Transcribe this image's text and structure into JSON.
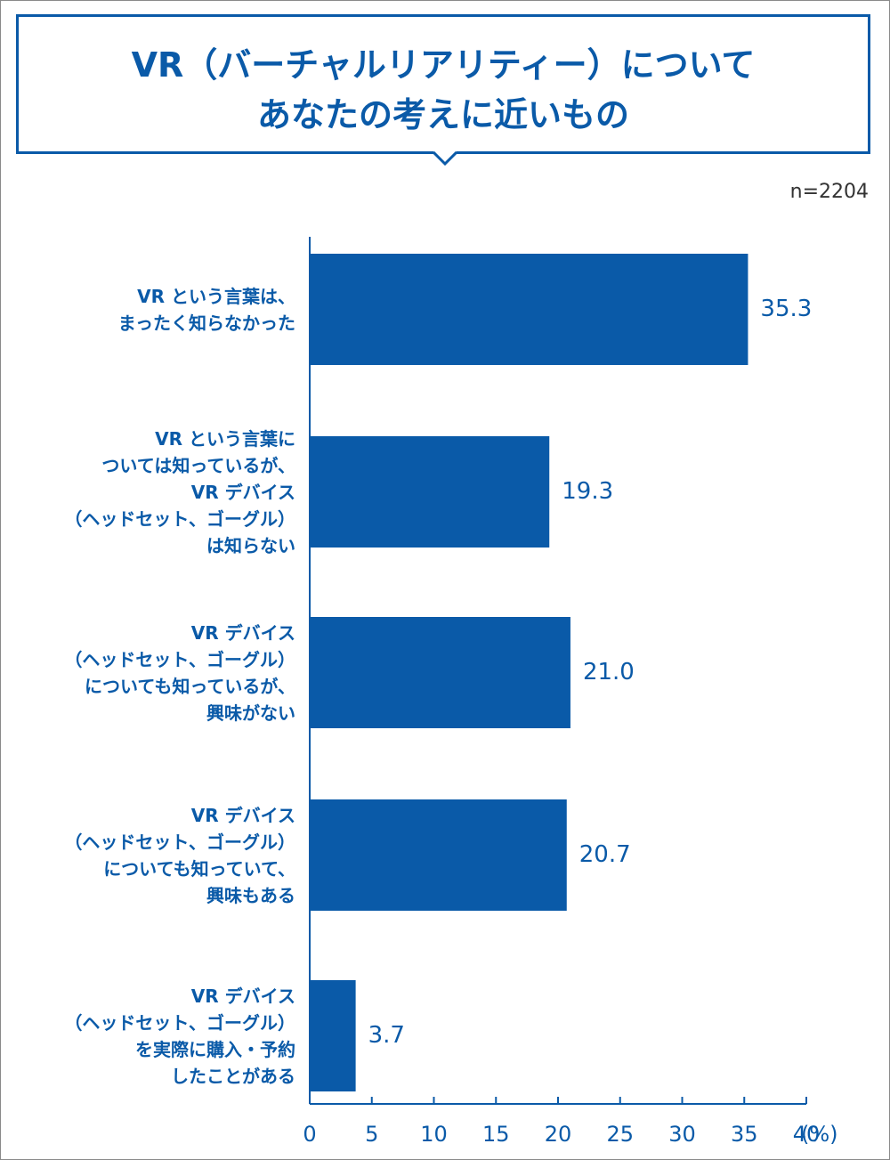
{
  "title": {
    "line1": "VR（バーチャルリアリティー）について",
    "line2": "あなたの考えに近いもの"
  },
  "sample_size": "n=2204",
  "colors": {
    "bar": "#0a5aa8",
    "text": "#0a5aa8",
    "axis": "#0a5aa8"
  },
  "chart_data": {
    "type": "bar",
    "orientation": "horizontal",
    "categories": [
      [
        "VR という言葉は、",
        "まったく知らなかった"
      ],
      [
        "VR という言葉に",
        "ついては知っているが、",
        "VR デバイス",
        "（ヘッドセット、ゴーグル）",
        "は知らない"
      ],
      [
        "VR デバイス",
        "（ヘッドセット、ゴーグル）",
        "についても知っているが、",
        "興味がない"
      ],
      [
        "VR デバイス",
        "（ヘッドセット、ゴーグル）",
        "についても知っていて、",
        "興味もある"
      ],
      [
        "VR デバイス",
        "（ヘッドセット、ゴーグル）",
        "を実際に購入・予約",
        "したことがある"
      ]
    ],
    "values": [
      35.3,
      19.3,
      21.0,
      20.7,
      3.7
    ],
    "value_labels": [
      "35.3",
      "19.3",
      "21.0",
      "20.7",
      "3.7"
    ],
    "xlim": [
      0,
      40
    ],
    "ticks": [
      "0",
      "5",
      "10",
      "15",
      "20",
      "25",
      "30",
      "35",
      "40"
    ],
    "unit": "(%)",
    "grid": false
  }
}
